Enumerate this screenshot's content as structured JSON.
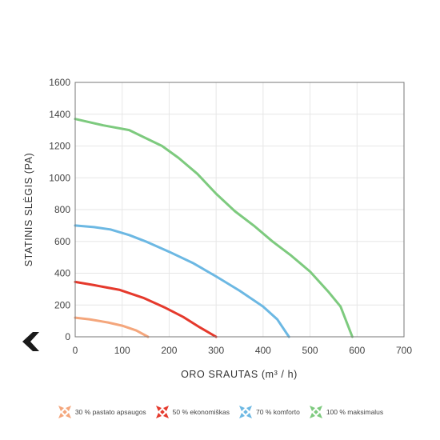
{
  "navigation": {
    "back_icon": "chevron-left-icon"
  },
  "chart_data": {
    "type": "line",
    "xlabel": "ORO SRAUTAS (m³ / h)",
    "ylabel": "STATINIS SLĖGIS (PA)",
    "xlim": [
      0,
      700
    ],
    "ylim": [
      0,
      1600
    ],
    "x_ticks": [
      "0",
      "100",
      "200",
      "300",
      "400",
      "500",
      "600",
      "700"
    ],
    "y_ticks": [
      "0",
      "200",
      "400",
      "600",
      "800",
      "1000",
      "1200",
      "1400",
      "1600"
    ],
    "grid": true,
    "legend_position": "bottom",
    "series": [
      {
        "name": "30 % pastato apsaugos",
        "color": "#f4a67c",
        "points": [
          [
            0,
            120
          ],
          [
            30,
            110
          ],
          [
            70,
            90
          ],
          [
            100,
            70
          ],
          [
            130,
            40
          ],
          [
            155,
            0
          ]
        ]
      },
      {
        "name": "50 % ekonomiškas",
        "color": "#e5392c",
        "points": [
          [
            0,
            345
          ],
          [
            40,
            325
          ],
          [
            95,
            295
          ],
          [
            145,
            245
          ],
          [
            190,
            185
          ],
          [
            230,
            125
          ],
          [
            265,
            60
          ],
          [
            300,
            0
          ]
        ]
      },
      {
        "name": "70 % komforto",
        "color": "#6cb8e3",
        "points": [
          [
            0,
            700
          ],
          [
            40,
            690
          ],
          [
            75,
            675
          ],
          [
            115,
            640
          ],
          [
            150,
            600
          ],
          [
            200,
            535
          ],
          [
            250,
            465
          ],
          [
            300,
            380
          ],
          [
            350,
            290
          ],
          [
            400,
            190
          ],
          [
            430,
            110
          ],
          [
            455,
            0
          ]
        ]
      },
      {
        "name": "100 % maksimalus",
        "color": "#7dca7e",
        "points": [
          [
            0,
            1370
          ],
          [
            60,
            1330
          ],
          [
            115,
            1300
          ],
          [
            150,
            1250
          ],
          [
            185,
            1200
          ],
          [
            220,
            1125
          ],
          [
            260,
            1025
          ],
          [
            300,
            900
          ],
          [
            340,
            790
          ],
          [
            380,
            700
          ],
          [
            420,
            600
          ],
          [
            460,
            510
          ],
          [
            500,
            410
          ],
          [
            540,
            280
          ],
          [
            565,
            190
          ],
          [
            590,
            0
          ]
        ]
      }
    ]
  }
}
